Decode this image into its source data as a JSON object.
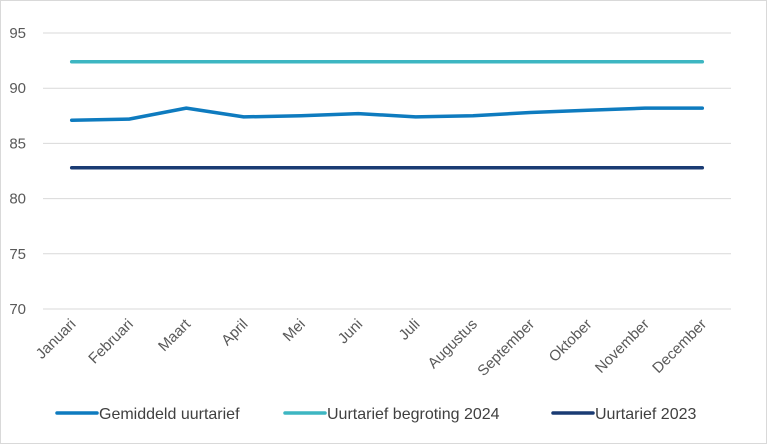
{
  "chart_data": {
    "type": "line",
    "title": "",
    "xlabel": "",
    "ylabel": "",
    "categories": [
      "Januari",
      "Februari",
      "Maart",
      "April",
      "Mei",
      "Juni",
      "Juli",
      "Augustus",
      "September",
      "Oktober",
      "November",
      "December"
    ],
    "ylim": [
      70,
      95
    ],
    "yticks": [
      70,
      75,
      80,
      85,
      90,
      95
    ],
    "grid": true,
    "legend_position": "bottom",
    "series": [
      {
        "name": "Gemiddeld uurtarief",
        "color": "#0e7bbf",
        "values": [
          87.1,
          87.2,
          88.2,
          87.4,
          87.5,
          87.7,
          87.4,
          87.5,
          87.8,
          88.0,
          88.2,
          88.2
        ]
      },
      {
        "name": "Uurtarief begroting 2024",
        "color": "#3db6c2",
        "values": [
          92.4,
          92.4,
          92.4,
          92.4,
          92.4,
          92.4,
          92.4,
          92.4,
          92.4,
          92.4,
          92.4,
          92.4
        ]
      },
      {
        "name": "Uurtarief 2023",
        "color": "#1a3b73",
        "values": [
          82.8,
          82.8,
          82.8,
          82.8,
          82.8,
          82.8,
          82.8,
          82.8,
          82.8,
          82.8,
          82.8,
          82.8
        ]
      }
    ]
  }
}
